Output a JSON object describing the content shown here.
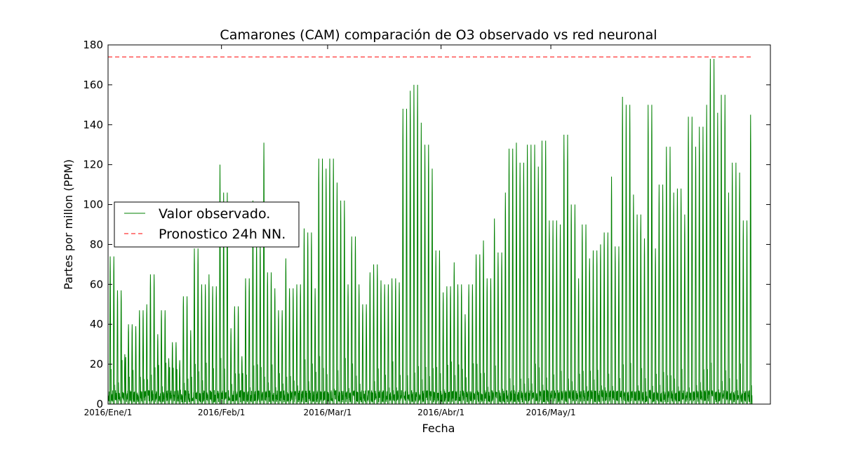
{
  "chart_data": {
    "type": "line",
    "title": "Camarones (CAM) comparación de O3 observado vs red neuronal",
    "xlabel": "Fecha",
    "ylabel": "Partes por millon (PPM)",
    "ylim": [
      0,
      180
    ],
    "yticks": [
      0,
      20,
      40,
      60,
      80,
      100,
      120,
      140,
      160,
      180
    ],
    "xlim": [
      "2016-01-01",
      "2016-06-30"
    ],
    "xticks": [
      {
        "date": "2016-01-01",
        "label": "2016/Ene/1"
      },
      {
        "date": "2016-02-01",
        "label": "2016/Feb/1"
      },
      {
        "date": "2016-03-01",
        "label": "2016/Mar/1"
      },
      {
        "date": "2016-04-01",
        "label": "2016/Abr/1"
      },
      {
        "date": "2016-05-01",
        "label": "2016/May/1"
      }
    ],
    "grid": false,
    "legend_position": "center-left",
    "series": [
      {
        "name": "Valor observado.",
        "color": "#008000",
        "style": "solid",
        "hourly": true,
        "start_date": "2016-01-01",
        "daily_peaks": [
          74,
          57,
          25,
          40,
          39,
          47,
          50,
          65,
          35,
          47,
          23,
          31,
          22,
          54,
          37,
          78,
          60,
          65,
          59,
          120,
          106,
          38,
          49,
          24,
          63,
          102,
          82,
          131,
          66,
          58,
          47,
          73,
          58,
          60,
          88,
          86,
          58,
          123,
          118,
          123,
          111,
          102,
          60,
          84,
          60,
          50,
          66,
          70,
          62,
          60,
          63,
          61,
          148,
          157,
          160,
          141,
          130,
          118,
          77,
          56,
          59,
          71,
          60,
          45,
          60,
          75,
          82,
          63,
          93,
          76,
          106,
          128,
          131,
          121,
          130,
          130,
          119,
          132,
          92,
          92,
          90,
          135,
          100,
          63,
          90,
          73,
          77,
          80,
          86,
          114,
          79,
          154,
          150,
          105,
          95,
          83,
          150,
          78,
          110,
          129,
          106,
          108,
          95,
          144,
          129,
          139,
          150,
          173,
          146,
          155,
          106,
          121,
          116,
          92,
          145
        ],
        "end_date": "2016-06-25"
      },
      {
        "name": "Pronostico 24h NN.",
        "color": "#ff0000",
        "style": "dashed",
        "y": 174,
        "x_start": "2016-01-01",
        "x_end": "2016-06-25"
      }
    ]
  }
}
